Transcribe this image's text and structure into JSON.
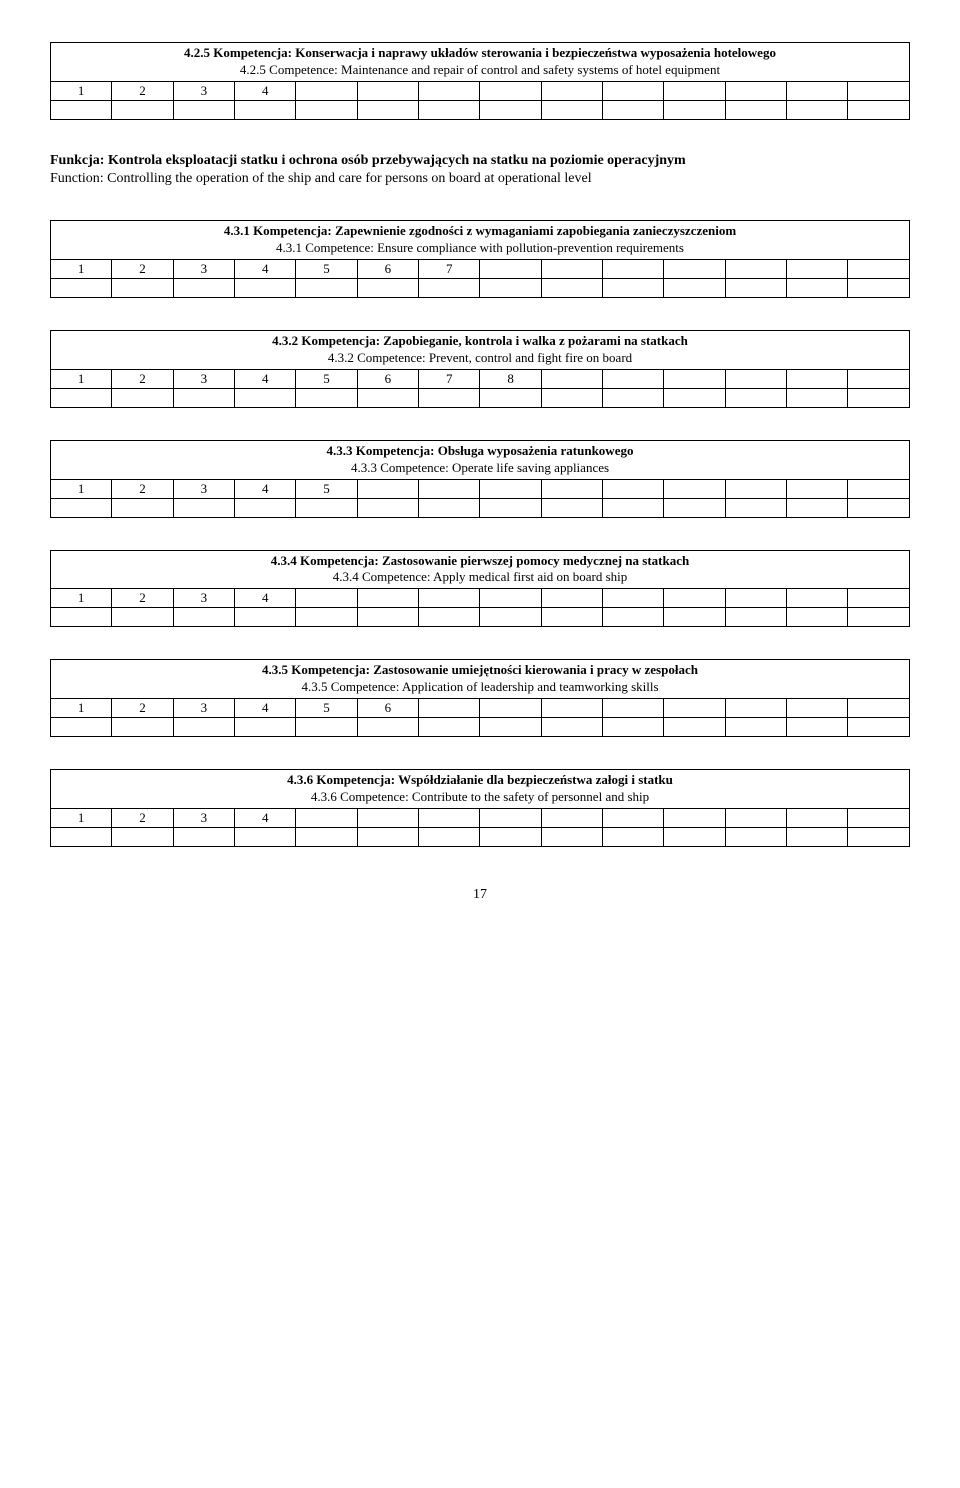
{
  "total_cols": 14,
  "sections": [
    {
      "title_pl": "4.2.5 Kompetencja: Konserwacja i naprawy układów sterowania i bezpieczeństwa wyposażenia hotelowego",
      "title_en": "4.2.5 Competence: Maintenance and repair of control and safety systems of hotel equipment",
      "nums": [
        "1",
        "2",
        "3",
        "4"
      ]
    }
  ],
  "func": {
    "title_pl": "Funkcja: Kontrola eksploatacji statku i ochrona osób przebywających na statku na poziomie operacyjnym",
    "title_en": "Function: Controlling the operation of the ship and care for persons on board at operational level"
  },
  "sections2": [
    {
      "title_pl": "4.3.1 Kompetencja: Zapewnienie zgodności z wymaganiami zapobiegania zanieczyszczeniom",
      "title_en": "4.3.1 Competence: Ensure compliance with pollution-prevention requirements",
      "nums": [
        "1",
        "2",
        "3",
        "4",
        "5",
        "6",
        "7"
      ]
    },
    {
      "title_pl": "4.3.2 Kompetencja: Zapobieganie, kontrola i walka z pożarami na statkach",
      "title_en": "4.3.2 Competence: Prevent, control and fight fire on board",
      "nums": [
        "1",
        "2",
        "3",
        "4",
        "5",
        "6",
        "7",
        "8"
      ]
    },
    {
      "title_pl": "4.3.3 Kompetencja: Obsługa wyposażenia ratunkowego",
      "title_en": "4.3.3 Competence: Operate life saving appliances",
      "nums": [
        "1",
        "2",
        "3",
        "4",
        "5"
      ]
    },
    {
      "title_pl": "4.3.4 Kompetencja: Zastosowanie pierwszej pomocy medycznej na statkach",
      "title_en": "4.3.4 Competence: Apply medical first aid on board ship",
      "nums": [
        "1",
        "2",
        "3",
        "4"
      ]
    },
    {
      "title_pl": "4.3.5 Kompetencja: Zastosowanie umiejętności kierowania i pracy w zespołach",
      "title_en": "4.3.5 Competence: Application of leadership and teamworking skills",
      "nums": [
        "1",
        "2",
        "3",
        "4",
        "5",
        "6"
      ]
    },
    {
      "title_pl": "4.3.6 Kompetencja: Współdziałanie dla bezpieczeństwa załogi i statku",
      "title_en": "4.3.6 Competence: Contribute to the safety of personnel and ship",
      "nums": [
        "1",
        "2",
        "3",
        "4"
      ]
    }
  ],
  "page_number": "17"
}
